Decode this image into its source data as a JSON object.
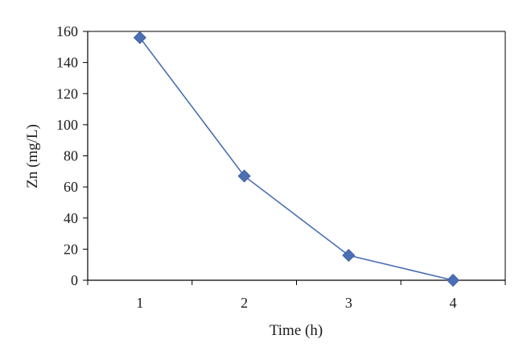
{
  "chart_data": {
    "type": "line",
    "title": "",
    "xlabel": "Time (h)",
    "ylabel": "Zn (mg/L)",
    "x": [
      1,
      2,
      3,
      4
    ],
    "xticks": [
      "1",
      "2",
      "3",
      "4"
    ],
    "yticks": [
      "0",
      "20",
      "40",
      "60",
      "80",
      "100",
      "120",
      "140",
      "160"
    ],
    "ylim": [
      0,
      160
    ],
    "grid": false,
    "legend": "none",
    "series": [
      {
        "values": [
          156,
          67,
          16,
          0
        ],
        "color": "#4a6fb5",
        "marker": "diamond"
      }
    ]
  }
}
